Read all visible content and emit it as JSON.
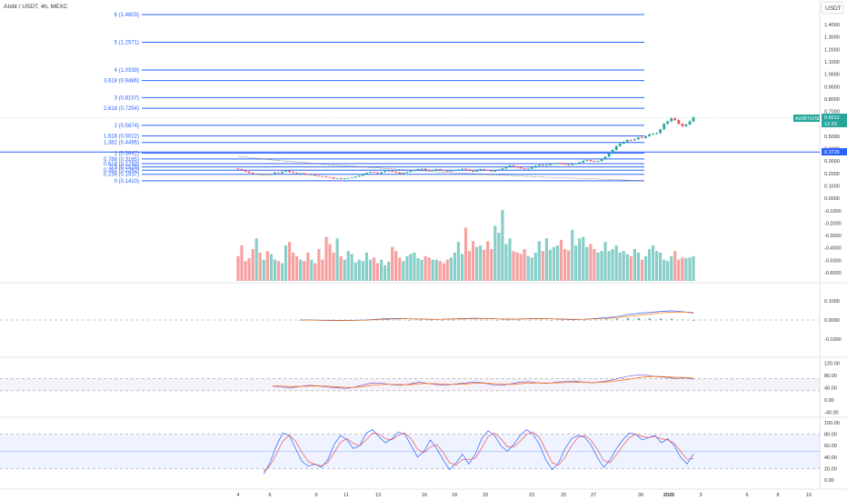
{
  "header": {
    "symbol_title": "AIxbt / USDT, 4h, MEXC",
    "currency_button": "USDT"
  },
  "colors": {
    "up": "#26a69a",
    "down": "#ef5350",
    "fib": "#2962ff",
    "macd": "#2962ff",
    "signal": "#ff6d00",
    "rsi": "#7e57c2",
    "stoch_k": "#2962ff",
    "stoch_d": "#ef5350"
  },
  "price_tag": {
    "symbol": "AIXBT/USDT",
    "price": "0.6512",
    "countdown": "12:33",
    "level_value": "0.3726"
  },
  "chart_data": [
    {
      "type": "candlestick",
      "panel": "price",
      "title": "AIxbt / USDT, 4h, MEXC",
      "x_tick_labels": [
        "4",
        "6",
        "9",
        "11",
        "13",
        "16",
        "18",
        "20",
        "23",
        "25",
        "27",
        "30",
        "2025",
        "3",
        "6",
        "8",
        "10"
      ],
      "y_tick_labels": [
        "1.4000",
        "1.3000",
        "1.2000",
        "1.1000",
        "1.0000",
        "0.9000",
        "0.8000",
        "0.7000",
        "0.6000",
        "0.5000",
        "0.4000",
        "0.3000",
        "0.2000",
        "0.1000",
        "0.0000",
        "-0.1000",
        "-0.2000",
        "-0.3000",
        "-0.4000",
        "-0.5000",
        "-0.6000"
      ],
      "last_price": 0.6512,
      "closes": [
        0.235,
        0.228,
        0.215,
        0.205,
        0.196,
        0.198,
        0.188,
        0.193,
        0.19,
        0.198,
        0.208,
        0.202,
        0.214,
        0.222,
        0.212,
        0.205,
        0.198,
        0.202,
        0.195,
        0.188,
        0.192,
        0.182,
        0.178,
        0.175,
        0.17,
        0.168,
        0.158,
        0.162,
        0.155,
        0.16,
        0.164,
        0.168,
        0.175,
        0.182,
        0.195,
        0.205,
        0.212,
        0.208,
        0.2,
        0.21,
        0.218,
        0.222,
        0.215,
        0.208,
        0.198,
        0.205,
        0.212,
        0.22,
        0.228,
        0.235,
        0.238,
        0.228,
        0.222,
        0.228,
        0.235,
        0.228,
        0.222,
        0.218,
        0.222,
        0.228,
        0.232,
        0.238,
        0.232,
        0.222,
        0.215,
        0.225,
        0.235,
        0.228,
        0.222,
        0.216,
        0.226,
        0.232,
        0.24,
        0.255,
        0.265,
        0.258,
        0.248,
        0.24,
        0.235,
        0.238,
        0.248,
        0.262,
        0.27,
        0.265,
        0.268,
        0.275,
        0.282,
        0.285,
        0.278,
        0.272,
        0.268,
        0.275,
        0.28,
        0.29,
        0.302,
        0.308,
        0.3,
        0.295,
        0.3,
        0.315,
        0.335,
        0.36,
        0.39,
        0.42,
        0.44,
        0.455,
        0.47,
        0.468,
        0.475,
        0.49,
        0.485,
        0.5,
        0.515,
        0.52,
        0.525,
        0.555,
        0.6,
        0.62,
        0.645,
        0.63,
        0.6,
        0.58,
        0.595,
        0.62,
        0.6512
      ],
      "volume_relative": [
        0.35,
        0.5,
        0.28,
        0.32,
        0.45,
        0.6,
        0.4,
        0.3,
        0.42,
        0.38,
        0.3,
        0.28,
        0.25,
        0.5,
        0.55,
        0.4,
        0.35,
        0.3,
        0.28,
        0.4,
        0.3,
        0.25,
        0.45,
        0.3,
        0.62,
        0.52,
        0.4,
        0.6,
        0.35,
        0.3,
        0.42,
        0.38,
        0.26,
        0.3,
        0.28,
        0.4,
        0.3,
        0.33,
        0.25,
        0.3,
        0.22,
        0.27,
        0.48,
        0.42,
        0.33,
        0.28,
        0.35,
        0.38,
        0.4,
        0.32,
        0.3,
        0.35,
        0.33,
        0.3,
        0.3,
        0.28,
        0.25,
        0.3,
        0.33,
        0.4,
        0.55,
        0.38,
        0.75,
        0.42,
        0.56,
        0.48,
        0.5,
        0.44,
        0.56,
        0.45,
        0.78,
        0.68,
        1.0,
        0.52,
        0.6,
        0.42,
        0.4,
        0.38,
        0.45,
        0.35,
        0.33,
        0.4,
        0.56,
        0.42,
        0.6,
        0.44,
        0.48,
        0.5,
        0.58,
        0.45,
        0.43,
        0.72,
        0.5,
        0.6,
        0.62,
        0.48,
        0.52,
        0.45,
        0.4,
        0.42,
        0.55,
        0.42,
        0.45,
        0.5,
        0.4,
        0.42,
        0.38,
        0.35,
        0.45,
        0.4,
        0.3,
        0.35,
        0.45,
        0.5,
        0.42,
        0.4,
        0.3,
        0.28,
        0.35,
        0.42,
        0.3,
        0.33,
        0.32,
        0.33,
        0.35
      ],
      "fib_levels": [
        {
          "label": "6 (1.4803)",
          "value": 1.4803
        },
        {
          "label": "5 (1.2571)",
          "value": 1.2571
        },
        {
          "label": "4 (1.0339)",
          "value": 1.0339
        },
        {
          "label": "3.618 (0.9486)",
          "value": 0.9486
        },
        {
          "label": "3 (0.8107)",
          "value": 0.8107
        },
        {
          "label": "2.618 (0.7254)",
          "value": 0.7254
        },
        {
          "label": "2 (0.5874)",
          "value": 0.5874
        },
        {
          "label": "1.618 (0.5022)",
          "value": 0.5022
        },
        {
          "label": "1.382 (0.4495)",
          "value": 0.4495
        },
        {
          "label": "1 (0.3642)",
          "value": 0.3642
        },
        {
          "label": "0.786 (0.3165)",
          "value": 0.3165
        },
        {
          "label": "0.618 (0.2790)",
          "value": 0.279
        },
        {
          "label": "0.5 (0.2526)",
          "value": 0.2526
        },
        {
          "label": "0.382 (0.2262)",
          "value": 0.2262
        },
        {
          "label": "0.236 (0.1937)",
          "value": 0.1937
        },
        {
          "label": "0 (0.1410)",
          "value": 0.141
        }
      ],
      "horizontal_line": 0.3726
    },
    {
      "type": "line",
      "panel": "macd",
      "y_tick_labels": [
        "0.1000",
        "0.0000",
        "-0.1000"
      ],
      "series": [
        {
          "values": [
            0.0,
            0.0,
            -0.002,
            -0.003,
            -0.003,
            -0.002,
            0.0,
            0.004,
            0.007,
            0.008,
            0.006,
            0.005,
            0.003,
            0.004,
            0.006,
            0.008,
            0.009,
            0.008,
            0.006,
            0.004,
            0.005,
            0.007,
            0.008,
            0.006,
            0.004,
            0.002,
            0.004,
            0.008,
            0.012,
            0.018,
            0.028,
            0.035,
            0.04,
            0.045,
            0.048,
            0.044,
            0.036
          ]
        },
        {
          "values": [
            0.0,
            -0.001,
            -0.001,
            -0.002,
            -0.002,
            -0.002,
            -0.001,
            0.002,
            0.004,
            0.006,
            0.006,
            0.005,
            0.004,
            0.004,
            0.005,
            0.006,
            0.007,
            0.007,
            0.006,
            0.005,
            0.005,
            0.006,
            0.007,
            0.006,
            0.005,
            0.004,
            0.004,
            0.006,
            0.008,
            0.012,
            0.018,
            0.025,
            0.031,
            0.037,
            0.041,
            0.042,
            0.04
          ]
        }
      ]
    },
    {
      "type": "line",
      "panel": "rsi",
      "y_tick_labels": [
        "120.00",
        "80.00",
        "40.00",
        "0.00",
        "-40.00"
      ],
      "series": [
        {
          "values": [
            45,
            42,
            40,
            44,
            48,
            46,
            42,
            40,
            38,
            42,
            50,
            56,
            54,
            50,
            48,
            52,
            58,
            54,
            50,
            48,
            52,
            55,
            58,
            56,
            50,
            48,
            52,
            58,
            60,
            56,
            54,
            58,
            60,
            62,
            58,
            56,
            60,
            64,
            72,
            78,
            82,
            80,
            76,
            74,
            70,
            72,
            68
          ]
        },
        {
          "values": [
            46,
            45,
            44,
            44,
            45,
            46,
            45,
            43,
            41,
            41,
            44,
            48,
            51,
            51,
            50,
            50,
            53,
            54,
            53,
            51,
            51,
            52,
            54,
            55,
            54,
            52,
            51,
            53,
            55,
            56,
            55,
            56,
            57,
            58,
            58,
            57,
            58,
            60,
            64,
            68,
            73,
            76,
            77,
            76,
            74,
            73,
            72
          ]
        }
      ]
    },
    {
      "type": "line",
      "panel": "stoch",
      "y_tick_labels": [
        "100.00",
        "80.00",
        "60.00",
        "40.00",
        "20.00",
        "0.00"
      ],
      "series": [
        {
          "values": [
            10,
            30,
            60,
            82,
            78,
            55,
            32,
            24,
            28,
            22,
            35,
            62,
            78,
            70,
            55,
            60,
            82,
            88,
            75,
            65,
            72,
            84,
            80,
            60,
            40,
            50,
            70,
            55,
            35,
            18,
            30,
            45,
            28,
            45,
            72,
            86,
            78,
            60,
            50,
            62,
            78,
            88,
            80,
            62,
            35,
            18,
            30,
            55,
            72,
            78,
            75,
            62,
            40,
            22,
            35,
            55,
            70,
            82,
            80,
            70,
            74,
            78,
            65,
            72,
            60,
            40,
            28,
            45
          ]
        },
        {
          "values": [
            15,
            25,
            45,
            68,
            78,
            68,
            48,
            32,
            27,
            25,
            30,
            48,
            66,
            72,
            64,
            60,
            70,
            82,
            80,
            72,
            70,
            78,
            82,
            72,
            54,
            48,
            58,
            62,
            48,
            30,
            26,
            36,
            36,
            38,
            56,
            76,
            82,
            72,
            58,
            58,
            68,
            80,
            84,
            74,
            52,
            30,
            26,
            40,
            60,
            74,
            78,
            70,
            54,
            34,
            30,
            44,
            60,
            74,
            80,
            76,
            74,
            76,
            72,
            70,
            64,
            50,
            36,
            38
          ]
        }
      ]
    }
  ]
}
